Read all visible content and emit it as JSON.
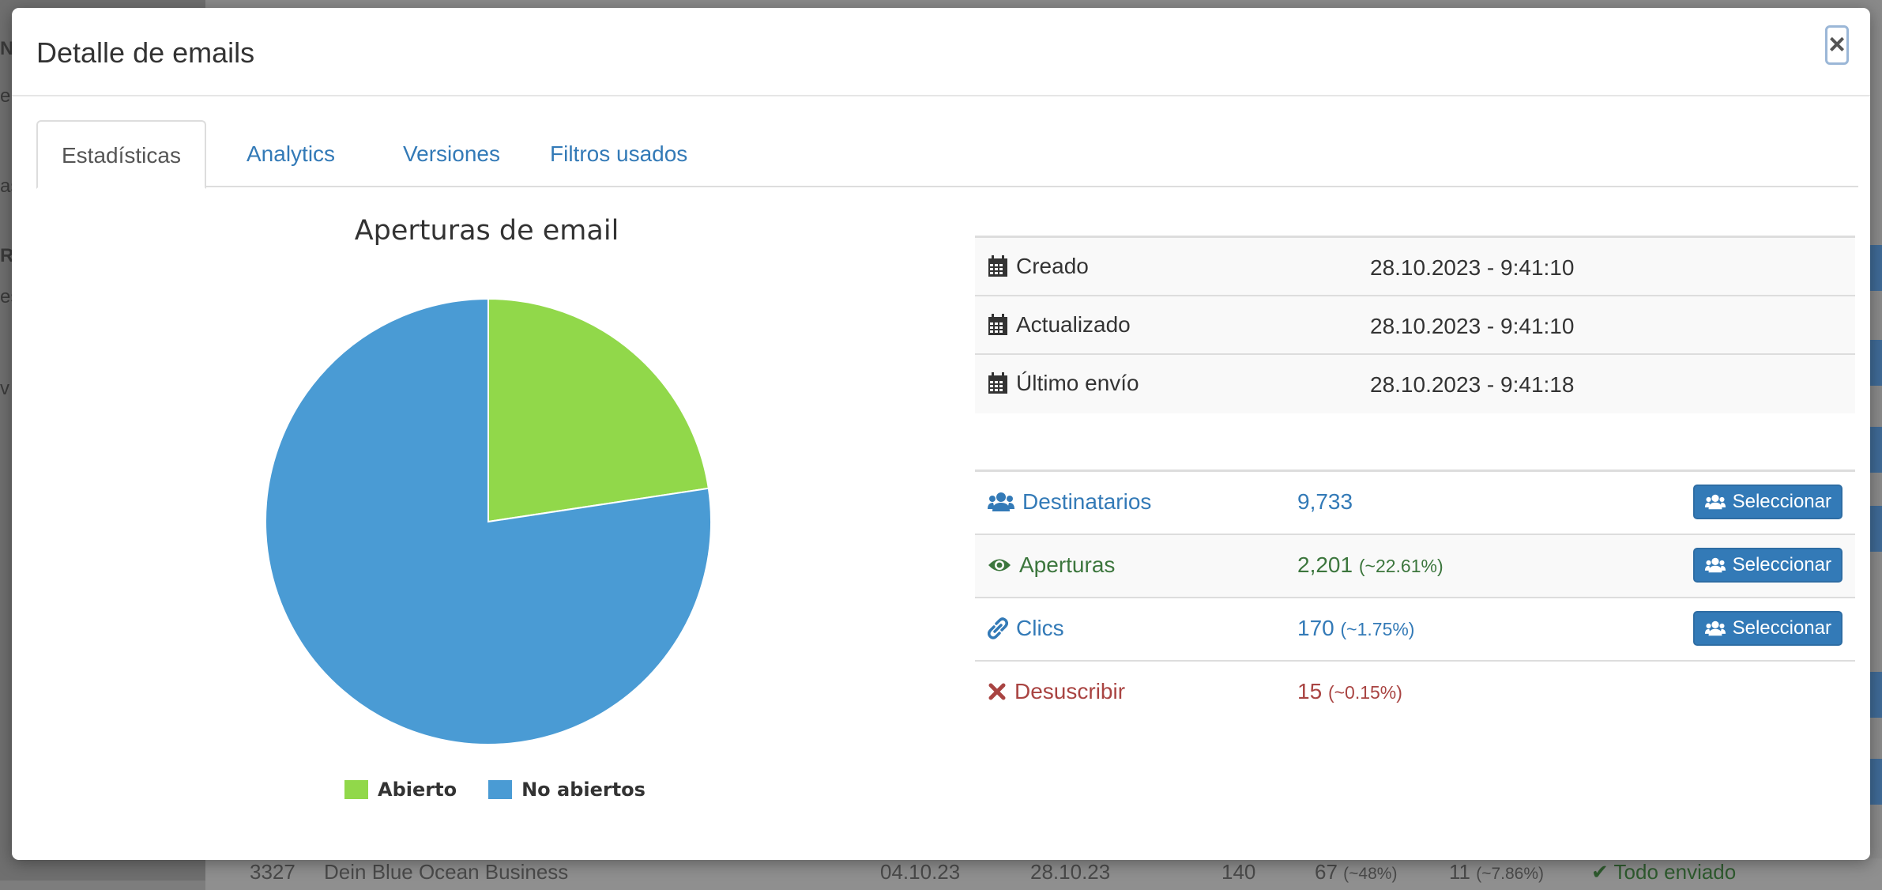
{
  "modal": {
    "title": "Detalle de emails",
    "close_label": "×"
  },
  "tabs": [
    {
      "label": "Estadísticas",
      "active": true
    },
    {
      "label": "Analytics",
      "active": false
    },
    {
      "label": "Versiones",
      "active": false
    },
    {
      "label": "Filtros usados",
      "active": false
    }
  ],
  "chart_data": {
    "type": "pie",
    "title": "Aperturas de email",
    "labels": [
      "Abierto",
      "No abiertos"
    ],
    "values": [
      22.61,
      77.39
    ],
    "colors": [
      "#91d84a",
      "#4a9bd4"
    ],
    "legend_position": "bottom"
  },
  "info": [
    {
      "icon": "calendar-icon",
      "label": "Creado",
      "value": "28.10.2023 - 9:41:10"
    },
    {
      "icon": "calendar-icon",
      "label": "Actualizado",
      "value": "28.10.2023 - 9:41:10"
    },
    {
      "icon": "calendar-icon",
      "label": "Último envío",
      "value": "28.10.2023 - 9:41:18"
    }
  ],
  "stats": [
    {
      "icon": "users-icon",
      "label": "Destinatarios",
      "value": "9,733",
      "pct": "",
      "color": "#337ab7",
      "button": "Seleccionar"
    },
    {
      "icon": "eye-icon",
      "label": "Aperturas",
      "value": "2,201",
      "pct": "(~22.61%)",
      "color": "#3c763d",
      "button": "Seleccionar"
    },
    {
      "icon": "link-icon",
      "label": "Clics",
      "value": "170",
      "pct": "(~1.75%)",
      "color": "#337ab7",
      "button": "Seleccionar"
    },
    {
      "icon": "close-x-icon",
      "label": "Desuscribir",
      "value": "15",
      "pct": "(~0.15%)",
      "color": "#a94442",
      "button": ""
    }
  ],
  "background": {
    "side_texts": [
      "N",
      "e",
      "as",
      "R",
      "es",
      "v"
    ],
    "row": {
      "id": "3327",
      "name": "Dein Blue Ocean Business",
      "date1": "04.10.23",
      "date2": "28.10.23",
      "count": "140",
      "opens": "67",
      "opens_pct": "(~48%)",
      "clicks": "11",
      "clicks_pct": "(~7.86%)",
      "status": "Todo enviado"
    }
  }
}
